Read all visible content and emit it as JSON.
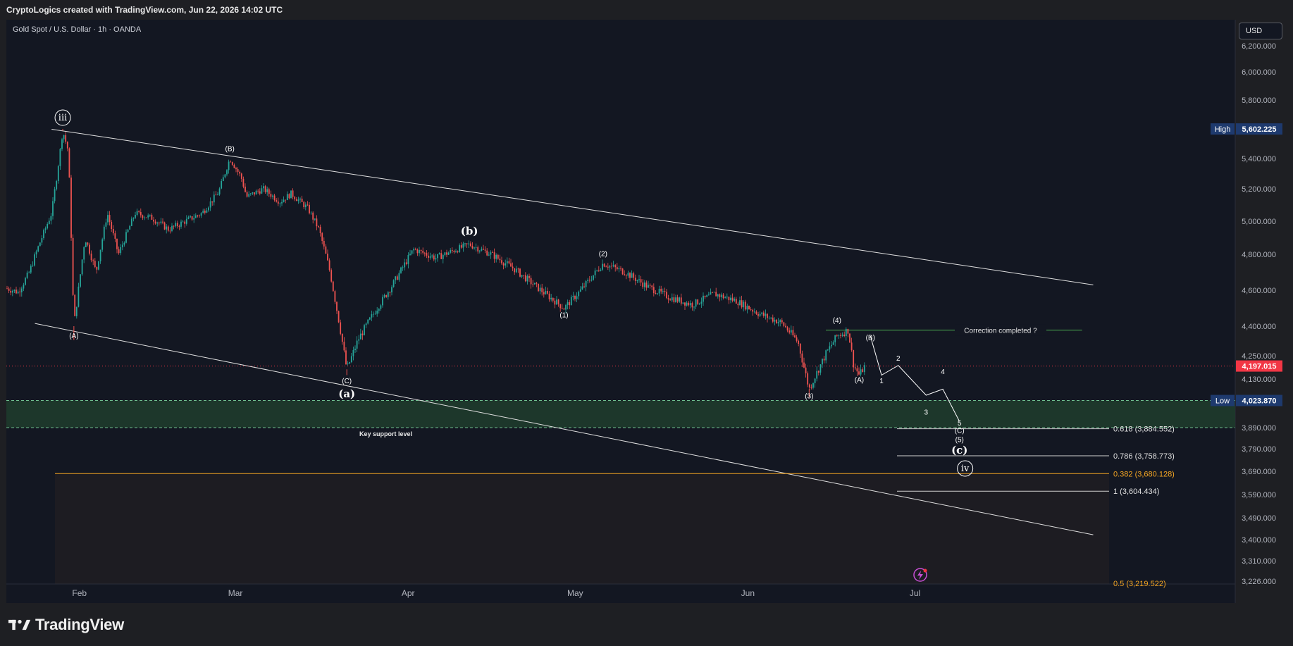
{
  "header": {
    "credit": "CryptoLogics created with TradingView.com, Jun 22, 2026 14:02 UTC",
    "symbol_title": "Gold Spot / U.S. Dollar · 1h · OANDA",
    "currency": "USD"
  },
  "footer": {
    "brand": "TradingView"
  },
  "colors": {
    "background": "#131722",
    "up_candle": "#26a69a",
    "down_candle": "#ef5350",
    "support_zone": "#1f3b2c",
    "fib_orange": "#f5a623",
    "price_red": "#f23645",
    "hl_blue": "#1e3a6e",
    "text": "#d1d4dc"
  },
  "chart_data": {
    "type": "candlestick",
    "timeframe": "1h",
    "y_ticks": [
      "6,200.000",
      "6,000.000",
      "5,800.000",
      "5,400.000",
      "5,200.000",
      "5,000.000",
      "4,800.000",
      "4,600.000",
      "4,400.000",
      "4,250.000",
      "4,130.000",
      "3,890.000",
      "3,790.000",
      "3,690.000",
      "3,590.000",
      "3,490.000",
      "3,400.000",
      "3,310.000",
      "3,226.000"
    ],
    "x_ticks": [
      "Feb",
      "Mar",
      "Apr",
      "May",
      "Jun",
      "Jul"
    ],
    "badges": {
      "high_label": "High",
      "high_value": "5,602.225",
      "current_value": "4,197.015",
      "low_label": "Low",
      "low_value": "4,023.870"
    },
    "price_path": [
      [
        "2026-01-19",
        4610
      ],
      [
        "2026-01-21",
        4590
      ],
      [
        "2026-01-23",
        4700
      ],
      [
        "2026-01-25",
        4880
      ],
      [
        "2026-01-27",
        5050
      ],
      [
        "2026-01-28",
        5300
      ],
      [
        "2026-01-29",
        5590
      ],
      [
        "2026-01-30",
        5450
      ],
      [
        "2026-01-31",
        4400
      ],
      [
        "2026-02-02",
        4900
      ],
      [
        "2026-02-04",
        4700
      ],
      [
        "2026-02-06",
        5050
      ],
      [
        "2026-02-08",
        4800
      ],
      [
        "2026-02-11",
        5050
      ],
      [
        "2026-02-14",
        5020
      ],
      [
        "2026-02-17",
        4950
      ],
      [
        "2026-02-20",
        5000
      ],
      [
        "2026-02-23",
        5050
      ],
      [
        "2026-02-26",
        5180
      ],
      [
        "2026-02-28",
        5400
      ],
      [
        "2026-03-02",
        5280
      ],
      [
        "2026-03-03",
        5150
      ],
      [
        "2026-03-06",
        5200
      ],
      [
        "2026-03-09",
        5120
      ],
      [
        "2026-03-11",
        5170
      ],
      [
        "2026-03-14",
        5080
      ],
      [
        "2026-03-16",
        4950
      ],
      [
        "2026-03-18",
        4700
      ],
      [
        "2026-03-21",
        4180
      ],
      [
        "2026-03-23",
        4330
      ],
      [
        "2026-03-26",
        4480
      ],
      [
        "2026-03-29",
        4620
      ],
      [
        "2026-04-02",
        4830
      ],
      [
        "2026-04-06",
        4780
      ],
      [
        "2026-04-09",
        4820
      ],
      [
        "2026-04-12",
        4860
      ],
      [
        "2026-04-16",
        4800
      ],
      [
        "2026-04-20",
        4720
      ],
      [
        "2026-04-24",
        4620
      ],
      [
        "2026-04-29",
        4500
      ],
      [
        "2026-05-02",
        4600
      ],
      [
        "2026-05-06",
        4750
      ],
      [
        "2026-05-10",
        4700
      ],
      [
        "2026-05-14",
        4620
      ],
      [
        "2026-05-18",
        4560
      ],
      [
        "2026-05-22",
        4520
      ],
      [
        "2026-05-26",
        4580
      ],
      [
        "2026-05-30",
        4540
      ],
      [
        "2026-06-03",
        4470
      ],
      [
        "2026-06-07",
        4420
      ],
      [
        "2026-06-10",
        4320
      ],
      [
        "2026-06-12",
        4080
      ],
      [
        "2026-06-15",
        4260
      ],
      [
        "2026-06-17",
        4350
      ],
      [
        "2026-06-19",
        4380
      ],
      [
        "2026-06-20",
        4200
      ],
      [
        "2026-06-21",
        4150
      ],
      [
        "2026-06-22",
        4197
      ]
    ],
    "projection_path": [
      [
        "2026-06-23",
        4350
      ],
      [
        "2026-06-25",
        4150
      ],
      [
        "2026-06-28",
        4200
      ],
      [
        "2026-07-03",
        4050
      ],
      [
        "2026-07-06",
        4080
      ],
      [
        "2026-07-09",
        3920
      ]
    ],
    "trendlines": [
      {
        "from": [
          "2026-01-27",
          5600
        ],
        "to": [
          "2026-08-02",
          4630
        ]
      },
      {
        "from": [
          "2026-01-24",
          4415
        ],
        "to": [
          "2026-08-02",
          3420
        ]
      }
    ],
    "support_zone": {
      "from": 4023.87,
      "to": 3890.0,
      "label": "Key support level"
    },
    "correction_line": {
      "value": 4380,
      "label": "Correction completed ?"
    },
    "fib_levels": [
      {
        "ratio": "0.618",
        "value": "3,884.552",
        "label": "0.618 (3,884.552)"
      },
      {
        "ratio": "0.786",
        "value": "3,758.773",
        "label": "0.786 (3,758.773)"
      },
      {
        "ratio": "0.382",
        "value": "3,680.128",
        "label": "0.382 (3,680.128)"
      },
      {
        "ratio": "1",
        "value": "3,604.434",
        "label": "1 (3,604.434)"
      },
      {
        "ratio": "0.5",
        "value": "3,219.522",
        "label": "0.5 (3,219.522)"
      }
    ],
    "wave_labels": [
      {
        "text": "iii",
        "circled": true,
        "date": "2026-01-29",
        "price": 5660
      },
      {
        "text": "(A)",
        "date": "2026-01-31",
        "price": 4340
      },
      {
        "text": "(B)",
        "date": "2026-02-28",
        "price": 5450
      },
      {
        "text": "(b)",
        "date": "2026-04-12",
        "price": 4920
      },
      {
        "text": "(2)",
        "date": "2026-05-06",
        "price": 4790
      },
      {
        "text": "(1)",
        "date": "2026-04-29",
        "price": 4450
      },
      {
        "text": "(C)",
        "date": "2026-03-21",
        "price": 4110
      },
      {
        "text": "(a)",
        "date": "2026-03-21",
        "price": 4040
      },
      {
        "text": "(4)",
        "date": "2026-06-17",
        "price": 4420
      },
      {
        "text": "(B)",
        "date": "2026-06-23",
        "price": 4330
      },
      {
        "text": "(A)",
        "date": "2026-06-21",
        "price": 4115
      },
      {
        "text": "(3)",
        "date": "2026-06-12",
        "price": 4035
      },
      {
        "text": "1",
        "date": "2026-06-25",
        "price": 4110
      },
      {
        "text": "2",
        "date": "2026-06-28",
        "price": 4225
      },
      {
        "text": "3",
        "date": "2026-07-03",
        "price": 3955
      },
      {
        "text": "4",
        "date": "2026-07-06",
        "price": 4155
      },
      {
        "text": "5",
        "date": "2026-07-09",
        "price": 3900
      },
      {
        "text": "(C)",
        "date": "2026-07-09",
        "price": 3865
      },
      {
        "text": "(5)",
        "date": "2026-07-09",
        "price": 3822
      },
      {
        "text": "(c)",
        "date": "2026-07-09",
        "price": 3768
      },
      {
        "text": "iv",
        "circled": true,
        "date": "2026-07-10",
        "price": 3690
      }
    ]
  }
}
